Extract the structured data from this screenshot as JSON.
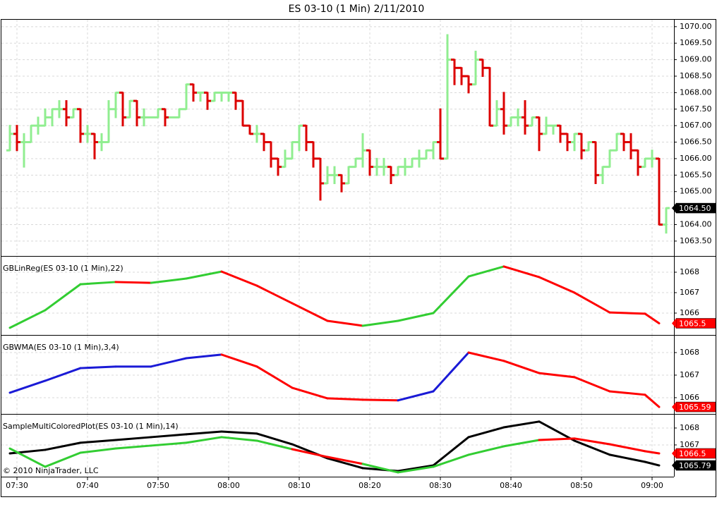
{
  "title": "ES 03-10 (1 Min)  2/11/2010",
  "footer": "© 2010 NinjaTrader, LLC",
  "chart_data": [
    {
      "type": "ohlc",
      "grid": true,
      "up_color": "#90ee90",
      "down_color": "#dc0000",
      "xlim": [
        447.8,
        543.1
      ],
      "ylim": [
        1063.07,
        1070.21
      ],
      "yticks": [
        {
          "value": 1063.5,
          "label": "1063.50"
        },
        {
          "value": 1064,
          "label": "1064.00"
        },
        {
          "value": 1064.5,
          "label": "1064.50"
        },
        {
          "value": 1065,
          "label": "1065.00"
        },
        {
          "value": 1065.5,
          "label": "1065.50"
        },
        {
          "value": 1066,
          "label": "1066.00"
        },
        {
          "value": 1066.5,
          "label": "1066.50"
        },
        {
          "value": 1067,
          "label": "1067.00"
        },
        {
          "value": 1067.5,
          "label": "1067.50"
        },
        {
          "value": 1068,
          "label": "1068.00"
        },
        {
          "value": 1068.5,
          "label": "1068.50"
        },
        {
          "value": 1069,
          "label": "1069.00"
        },
        {
          "value": 1069.5,
          "label": "1069.50"
        },
        {
          "value": 1070,
          "label": "1070.00"
        }
      ],
      "last_label": "1064.50",
      "x": [
        449,
        450,
        451,
        452,
        453,
        454,
        455,
        456,
        457,
        458,
        459,
        460,
        461,
        462,
        463,
        464,
        465,
        466,
        467,
        468,
        469,
        470,
        471,
        472,
        473,
        474,
        475,
        476,
        477,
        478,
        479,
        480,
        481,
        482,
        483,
        484,
        485,
        486,
        487,
        488,
        489,
        490,
        491,
        492,
        493,
        494,
        495,
        496,
        497,
        498,
        499,
        500,
        501,
        502,
        503,
        504,
        505,
        506,
        507,
        508,
        509,
        510,
        511,
        512,
        513,
        514,
        515,
        516,
        517,
        518,
        519,
        520,
        521,
        522,
        523,
        524,
        525,
        526,
        527,
        528,
        529,
        530,
        531,
        532,
        533,
        534,
        535,
        536,
        537,
        538,
        539,
        540,
        541,
        542
      ],
      "open": [
        1066.25,
        1066.75,
        1066.5,
        1066.5,
        1067.0,
        1067.0,
        1067.25,
        1067.5,
        1067.5,
        1067.25,
        1067.5,
        1066.75,
        1066.75,
        1066.5,
        1066.5,
        1067.5,
        1068.0,
        1067.25,
        1067.75,
        1067.25,
        1067.25,
        1067.25,
        1067.5,
        1067.25,
        1067.25,
        1067.5,
        1068.25,
        1068.0,
        1068.0,
        1067.75,
        1068.0,
        1068.0,
        1068.0,
        1067.75,
        1067.0,
        1066.75,
        1066.75,
        1066.5,
        1066.0,
        1065.75,
        1066.0,
        1066.5,
        1067.0,
        1066.5,
        1066.0,
        1065.25,
        1065.5,
        1065.5,
        1065.25,
        1065.75,
        1066.0,
        1066.25,
        1065.75,
        1065.75,
        1065.75,
        1065.5,
        1065.75,
        1065.75,
        1066.0,
        1066.0,
        1066.25,
        1066.5,
        1066.0,
        1069.0,
        1068.75,
        1068.5,
        1068.25,
        1069.0,
        1068.75,
        1067.0,
        1067.5,
        1067.0,
        1067.25,
        1067.25,
        1067.0,
        1067.25,
        1066.75,
        1067.0,
        1067.0,
        1066.75,
        1066.5,
        1066.75,
        1066.25,
        1066.5,
        1065.5,
        1065.75,
        1066.25,
        1066.75,
        1066.5,
        1066.25,
        1065.75,
        1066.0,
        1066.0,
        1064.0
      ],
      "high": [
        1067.0,
        1067.0,
        1066.75,
        1067.0,
        1067.25,
        1067.5,
        1067.5,
        1067.75,
        1067.75,
        1067.5,
        1067.5,
        1067.0,
        1066.75,
        1066.75,
        1067.75,
        1068.0,
        1068.0,
        1067.75,
        1067.75,
        1067.5,
        1067.25,
        1067.5,
        1067.5,
        1067.25,
        1067.5,
        1068.25,
        1068.25,
        1068.0,
        1068.0,
        1068.0,
        1068.0,
        1068.0,
        1068.0,
        1067.75,
        1067.0,
        1067.0,
        1066.75,
        1066.5,
        1066.0,
        1066.25,
        1066.5,
        1067.0,
        1067.0,
        1066.5,
        1066.0,
        1065.75,
        1065.75,
        1065.5,
        1065.75,
        1066.0,
        1066.75,
        1066.25,
        1066.0,
        1066.0,
        1065.75,
        1065.75,
        1066.0,
        1066.0,
        1066.25,
        1066.25,
        1066.5,
        1067.5,
        1069.75,
        1069.0,
        1068.75,
        1068.5,
        1069.25,
        1069.0,
        1068.75,
        1067.75,
        1068.0,
        1067.25,
        1067.5,
        1067.75,
        1067.25,
        1067.25,
        1067.25,
        1067.0,
        1067.0,
        1066.75,
        1066.75,
        1066.75,
        1066.5,
        1066.5,
        1065.75,
        1066.25,
        1066.75,
        1066.75,
        1066.75,
        1066.25,
        1066.0,
        1066.25,
        1066.0,
        1064.5
      ],
      "low": [
        1066.25,
        1066.25,
        1065.75,
        1066.5,
        1066.75,
        1067.0,
        1067.0,
        1067.25,
        1067.0,
        1067.25,
        1066.5,
        1066.5,
        1066.0,
        1066.25,
        1066.5,
        1067.25,
        1067.0,
        1067.25,
        1067.0,
        1067.0,
        1067.25,
        1067.25,
        1067.0,
        1067.25,
        1067.25,
        1067.5,
        1067.75,
        1067.75,
        1067.5,
        1067.75,
        1067.75,
        1067.75,
        1067.5,
        1067.0,
        1066.75,
        1066.5,
        1066.25,
        1065.75,
        1065.5,
        1065.75,
        1066.0,
        1066.25,
        1066.25,
        1065.75,
        1064.75,
        1065.25,
        1065.25,
        1065.0,
        1065.25,
        1065.75,
        1065.75,
        1065.5,
        1065.5,
        1065.5,
        1065.25,
        1065.5,
        1065.5,
        1065.75,
        1065.75,
        1066.0,
        1066.0,
        1066.0,
        1066.0,
        1068.25,
        1068.25,
        1068.0,
        1068.25,
        1068.5,
        1067.0,
        1067.0,
        1066.75,
        1067.0,
        1067.0,
        1066.75,
        1067.0,
        1066.25,
        1066.75,
        1066.75,
        1066.5,
        1066.25,
        1066.25,
        1066.0,
        1066.25,
        1065.25,
        1065.25,
        1065.75,
        1066.25,
        1066.25,
        1066.0,
        1065.5,
        1065.75,
        1065.75,
        1064.0,
        1063.75
      ],
      "close": [
        1066.75,
        1066.5,
        1066.5,
        1067.0,
        1067.0,
        1067.25,
        1067.5,
        1067.5,
        1067.25,
        1067.5,
        1066.75,
        1066.75,
        1066.5,
        1066.5,
        1067.5,
        1068.0,
        1067.25,
        1067.75,
        1067.25,
        1067.25,
        1067.25,
        1067.5,
        1067.25,
        1067.25,
        1067.5,
        1068.25,
        1068.0,
        1068.0,
        1067.75,
        1068.0,
        1068.0,
        1068.0,
        1067.75,
        1067.0,
        1066.75,
        1066.75,
        1066.5,
        1066.0,
        1065.75,
        1066.0,
        1066.5,
        1067.0,
        1066.5,
        1066.0,
        1065.25,
        1065.5,
        1065.5,
        1065.25,
        1065.75,
        1066.0,
        1066.25,
        1065.75,
        1065.75,
        1065.75,
        1065.5,
        1065.75,
        1065.75,
        1066.0,
        1066.0,
        1066.25,
        1066.5,
        1066.0,
        1069.0,
        1068.75,
        1068.5,
        1068.25,
        1069.0,
        1068.75,
        1067.0,
        1067.5,
        1067.0,
        1067.25,
        1067.25,
        1067.0,
        1067.25,
        1066.75,
        1067.0,
        1067.0,
        1066.75,
        1066.5,
        1066.75,
        1066.25,
        1066.5,
        1065.5,
        1065.75,
        1066.25,
        1066.75,
        1066.5,
        1066.25,
        1065.75,
        1066.0,
        1066.0,
        1064.0,
        1064.5
      ]
    },
    {
      "type": "line",
      "grid": true,
      "label": "GBLinReg(ES 03-10 (1 Min),22)",
      "xlim": [
        447.8,
        543.1
      ],
      "ylim": [
        1064.93,
        1068.76
      ],
      "yticks": [
        1066,
        1067,
        1068
      ],
      "x": [
        449,
        454,
        459,
        464,
        469,
        474,
        479,
        484,
        489,
        494,
        499,
        504,
        509,
        514,
        519,
        524,
        529,
        534,
        539,
        541
      ],
      "series": [
        {
          "up_color": "#32cd32",
          "down_color": "#ff0000",
          "values": [
            1065.28,
            1066.14,
            1067.41,
            1067.52,
            1067.48,
            1067.69,
            1068.03,
            1067.34,
            1066.48,
            1065.62,
            1065.38,
            1065.62,
            1066.0,
            1067.79,
            1068.28,
            1067.76,
            1067.0,
            1066.03,
            1065.97,
            1065.5
          ]
        }
      ]
    },
    {
      "type": "line",
      "grid": true,
      "label": "GBWMA(ES 03-10 (1 Min),3,4)",
      "xlim": [
        447.8,
        543.1
      ],
      "ylim": [
        1065.28,
        1068.75
      ],
      "yticks": [
        1066,
        1067,
        1068
      ],
      "x": [
        449,
        454,
        459,
        464,
        469,
        474,
        479,
        484,
        489,
        494,
        499,
        504,
        509,
        514,
        519,
        524,
        529,
        534,
        539,
        541
      ],
      "series": [
        {
          "up_color": "#1a1ad6",
          "down_color": "#ff0000",
          "values": [
            1066.22,
            1066.75,
            1067.31,
            1067.38,
            1067.38,
            1067.75,
            1067.91,
            1067.38,
            1066.44,
            1065.97,
            1065.91,
            1065.88,
            1066.28,
            1068.0,
            1067.63,
            1067.09,
            1066.91,
            1066.28,
            1066.13,
            1065.59
          ]
        }
      ]
    },
    {
      "type": "line",
      "grid": true,
      "label": "SampleMultiColoredPlot(ES 03-10 (1 Min),14)",
      "xlim": [
        447.8,
        543.1
      ],
      "ylim": [
        1065.125,
        1068.79
      ],
      "yticks": [
        1067,
        1068
      ],
      "xticks": [
        {
          "value": 450,
          "label": "07:30"
        },
        {
          "value": 460,
          "label": "07:40"
        },
        {
          "value": 470,
          "label": "07:50"
        },
        {
          "value": 480,
          "label": "08:00"
        },
        {
          "value": 490,
          "label": "08:10"
        },
        {
          "value": 500,
          "label": "08:20"
        },
        {
          "value": 510,
          "label": "08:30"
        },
        {
          "value": 520,
          "label": "08:40"
        },
        {
          "value": 530,
          "label": "08:50"
        },
        {
          "value": 540,
          "label": "09:00"
        }
      ],
      "x": [
        449,
        454,
        459,
        464,
        469,
        474,
        479,
        484,
        489,
        494,
        499,
        504,
        509,
        514,
        519,
        524,
        529,
        534,
        539,
        541
      ],
      "series": [
        {
          "color": "#000000",
          "values": [
            1066.5,
            1066.71,
            1067.13,
            1067.29,
            1067.46,
            1067.63,
            1067.79,
            1067.67,
            1067.04,
            1066.21,
            1065.63,
            1065.46,
            1065.79,
            1067.46,
            1068.04,
            1068.38,
            1067.25,
            1066.42,
            1066.0,
            1065.79
          ]
        },
        {
          "color_above": "#ff0000",
          "color_below": "#32cd32",
          "values": [
            1066.79,
            1065.71,
            1066.54,
            1066.79,
            1066.96,
            1067.13,
            1067.46,
            1067.25,
            1066.75,
            1066.29,
            1065.88,
            1065.38,
            1065.71,
            1066.42,
            1066.92,
            1067.29,
            1067.38,
            1067.04,
            1066.63,
            1066.5
          ]
        }
      ]
    }
  ]
}
